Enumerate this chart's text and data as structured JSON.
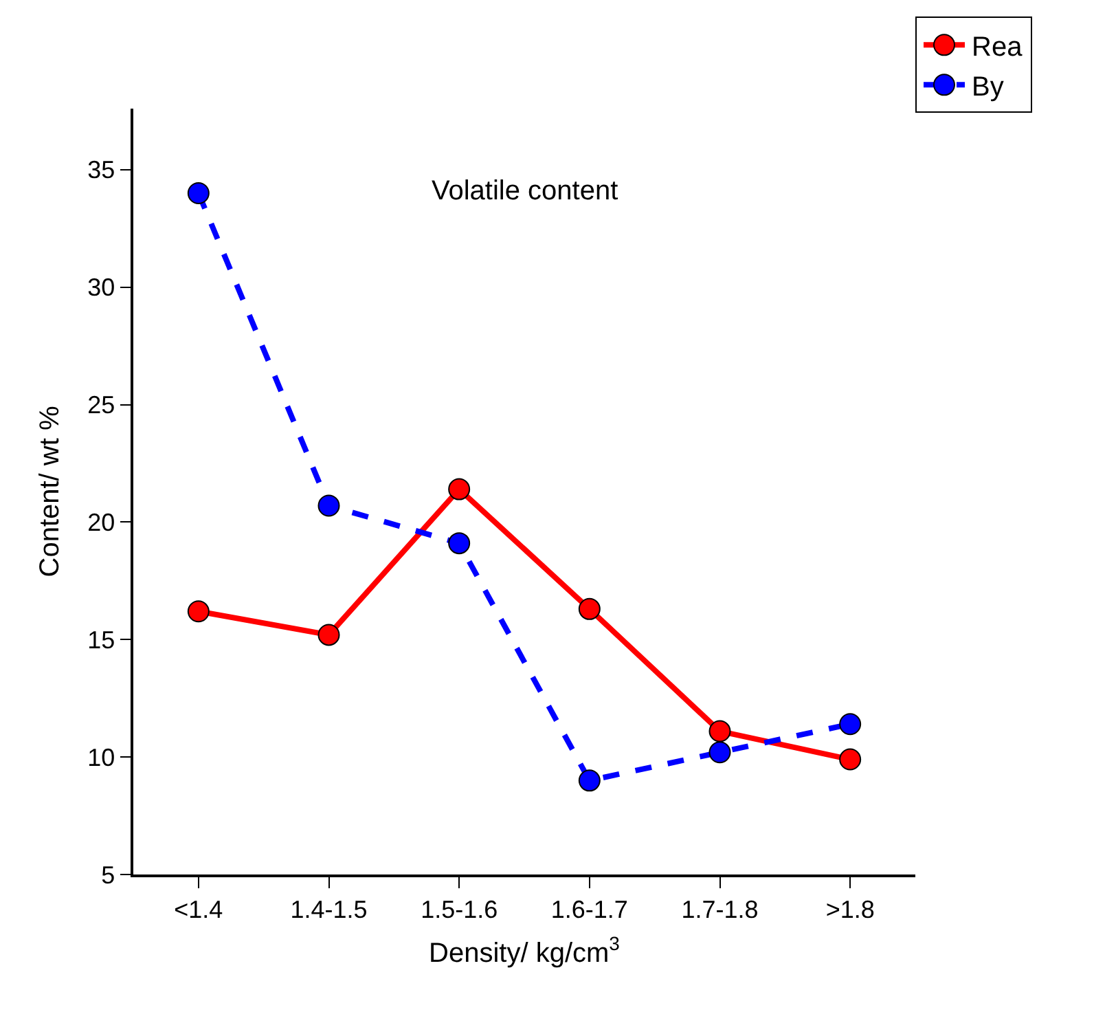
{
  "chart_data": {
    "type": "line",
    "xlabel": "Density/ kg/cm$^{3}$",
    "ylabel": "Content/ wt %",
    "annotations": [
      "Volatile content"
    ],
    "categories": [
      "<1.4",
      "1.4-1.5",
      "1.5-1.6",
      "1.6-1.7",
      "1.7-1.8",
      ">1.8"
    ],
    "series": [
      {
        "name": "Rea",
        "color": "#ff0000",
        "values": [
          16.2,
          15.2,
          21.4,
          16.3,
          11.1,
          9.9
        ],
        "line_style": "solid"
      },
      {
        "name": "By",
        "color": "#0000ff",
        "values": [
          34.0,
          20.7,
          19.1,
          9.0,
          10.2,
          11.4
        ],
        "line_style": "dashed"
      }
    ],
    "ylim": [
      5,
      37.6
    ],
    "yticks": [
      5,
      10,
      15,
      20,
      25,
      30,
      35
    ],
    "marker": "circle",
    "legend": "top right"
  }
}
